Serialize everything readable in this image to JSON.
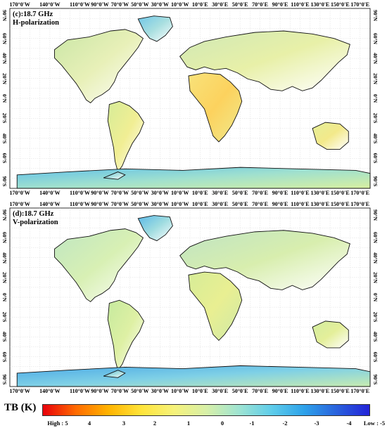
{
  "panels": [
    {
      "id": "c",
      "label_line1": "(c):18.7 GHz",
      "label_line2": "H-polarization"
    },
    {
      "id": "d",
      "label_line1": "(d):18.7 GHz",
      "label_line2": "V-polarization"
    }
  ],
  "lon_ticks": [
    "170°0'W",
    "140°0'W",
    "110°0'W",
    "90°0'W",
    "70°0'W",
    "50°0'W",
    "30°0'W",
    "10°0'W",
    "10°0'E",
    "30°0'E",
    "50°0'E",
    "70°0'E",
    "90°0'E",
    "110°0'E",
    "130°0'E",
    "150°0'E",
    "170°0'E"
  ],
  "lat_ticks": [
    "90°N",
    "60°N",
    "40°N",
    "20°N",
    "0°N",
    "20°S",
    "40°S",
    "60°S",
    "90°S"
  ],
  "colorbar": {
    "title": "TB (K)",
    "tick_labels": [
      "High : 5",
      "4",
      "3",
      "2",
      "1",
      "0",
      "-1",
      "-2",
      "-3",
      "-4",
      "Low : -5"
    ],
    "colors": [
      "#e8000b",
      "#ff6a00",
      "#ffb300",
      "#ffe43a",
      "#f6f27a",
      "#d8f0a8",
      "#9fe4d2",
      "#5fcdea",
      "#2ea2ea",
      "#2a62dd",
      "#2323d8"
    ]
  }
}
